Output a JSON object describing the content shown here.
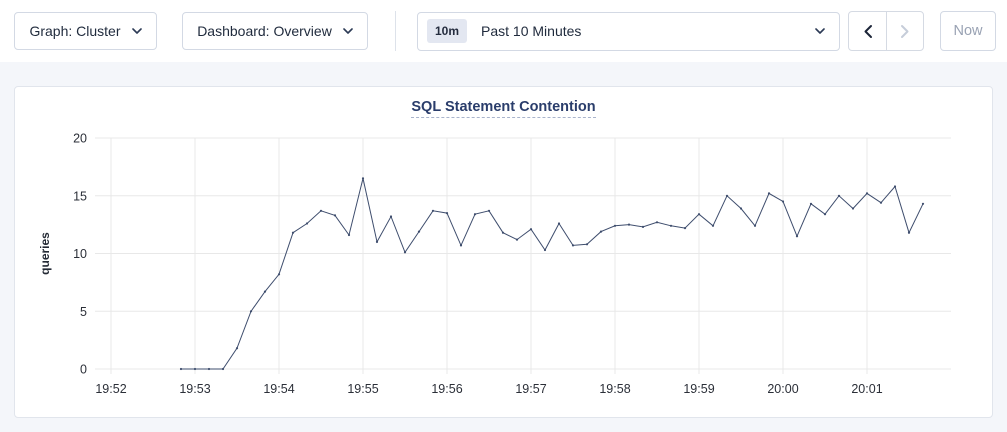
{
  "toolbar": {
    "graph_dropdown_label": "Graph: Cluster",
    "dashboard_dropdown_label": "Dashboard: Overview",
    "time_window_badge": "10m",
    "time_window_label": "Past 10 Minutes",
    "now_button_label": "Now"
  },
  "icons": {
    "graph_dropdown": "chevron-down-icon",
    "dashboard_dropdown": "chevron-down-icon",
    "time_picker": "chevron-down-icon",
    "prev_range": "chevron-left-icon",
    "next_range": "chevron-right-icon"
  },
  "colors": {
    "page_background": "#f4f6fa",
    "toolbar_background": "#ffffff",
    "control_border": "#d3d9e4",
    "text_primary": "#1f2a3c",
    "disabled_text": "#99a2b3",
    "badge_background": "#e3e7f1",
    "title_color": "#2a3d6b",
    "grid_color": "#e8e8e8",
    "line_color": "#3e4d6d"
  },
  "chart_data": {
    "type": "line",
    "title": "SQL Statement Contention",
    "xlabel": "",
    "ylabel": "queries",
    "ylim": [
      0,
      20
    ],
    "yticks": [
      0,
      5,
      10,
      15,
      20
    ],
    "x_domain": [
      "19:52:00",
      "20:02:00"
    ],
    "xtick_labels": [
      "19:52",
      "19:53",
      "19:54",
      "19:55",
      "19:56",
      "19:57",
      "19:58",
      "19:59",
      "20:00",
      "20:01"
    ],
    "grid": true,
    "legend_position": "none",
    "series": [
      {
        "name": "SQL Statement Contention",
        "start_time": "19:52:50",
        "interval_seconds": 10,
        "unit": "queries",
        "values": [
          0,
          0,
          0,
          0,
          1.8,
          5,
          6.7,
          8.2,
          11.8,
          12.6,
          13.7,
          13.3,
          11.6,
          16.5,
          11,
          13.2,
          10.1,
          11.9,
          13.7,
          13.5,
          10.7,
          13.4,
          13.7,
          11.8,
          11.2,
          12.1,
          10.3,
          12.6,
          10.7,
          10.8,
          11.9,
          12.4,
          12.5,
          12.3,
          12.7,
          12.4,
          12.2,
          13.4,
          12.4,
          15,
          13.9,
          12.4,
          15.2,
          14.5,
          11.5,
          14.3,
          13.4,
          15,
          13.9,
          15.2,
          14.4,
          15.8,
          11.8,
          14.3
        ]
      }
    ]
  }
}
